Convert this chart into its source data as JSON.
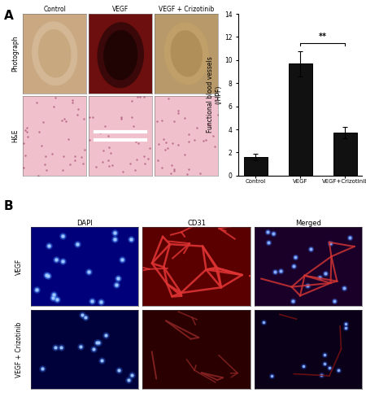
{
  "panel_A_label": "A",
  "panel_B_label": "B",
  "bar_categories": [
    "Control",
    "VEGF",
    "VEGF+Crizotinib"
  ],
  "bar_values": [
    1.6,
    9.7,
    3.7
  ],
  "bar_errors": [
    0.3,
    1.1,
    0.5
  ],
  "bar_color": "#111111",
  "bar_edge_color": "#000000",
  "ylabel": "Functional blood vessels\n(/HPF)",
  "ylim": [
    0,
    14
  ],
  "yticks": [
    0,
    2,
    4,
    6,
    8,
    10,
    12,
    14
  ],
  "significance_label": "**",
  "background_color": "#ffffff",
  "col_labels": [
    "Control",
    "VEGF",
    "VEGF + Crizotinib"
  ],
  "row_labels_A": [
    "Photograph",
    "H&E"
  ],
  "photo_colors_row0": [
    "#c9a882",
    "#6e0f0f",
    "#b89a6a"
  ],
  "photo_colors_row1": [
    "#f0c0cc",
    "#f0c0cc",
    "#f0c0cc"
  ],
  "B_row_labels": [
    "VEGF",
    "VEGF + Crizotinib"
  ],
  "B_col_labels": [
    "DAPI",
    "CD31",
    "Merged"
  ],
  "dapi_bg_row0": "#00007a",
  "cd31_bg_row0": "#5a0000",
  "merged_bg_row0": "#1a0028",
  "dapi_bg_row1": "#00003a",
  "cd31_bg_row1": "#2a0000",
  "merged_bg_row1": "#0a0018"
}
